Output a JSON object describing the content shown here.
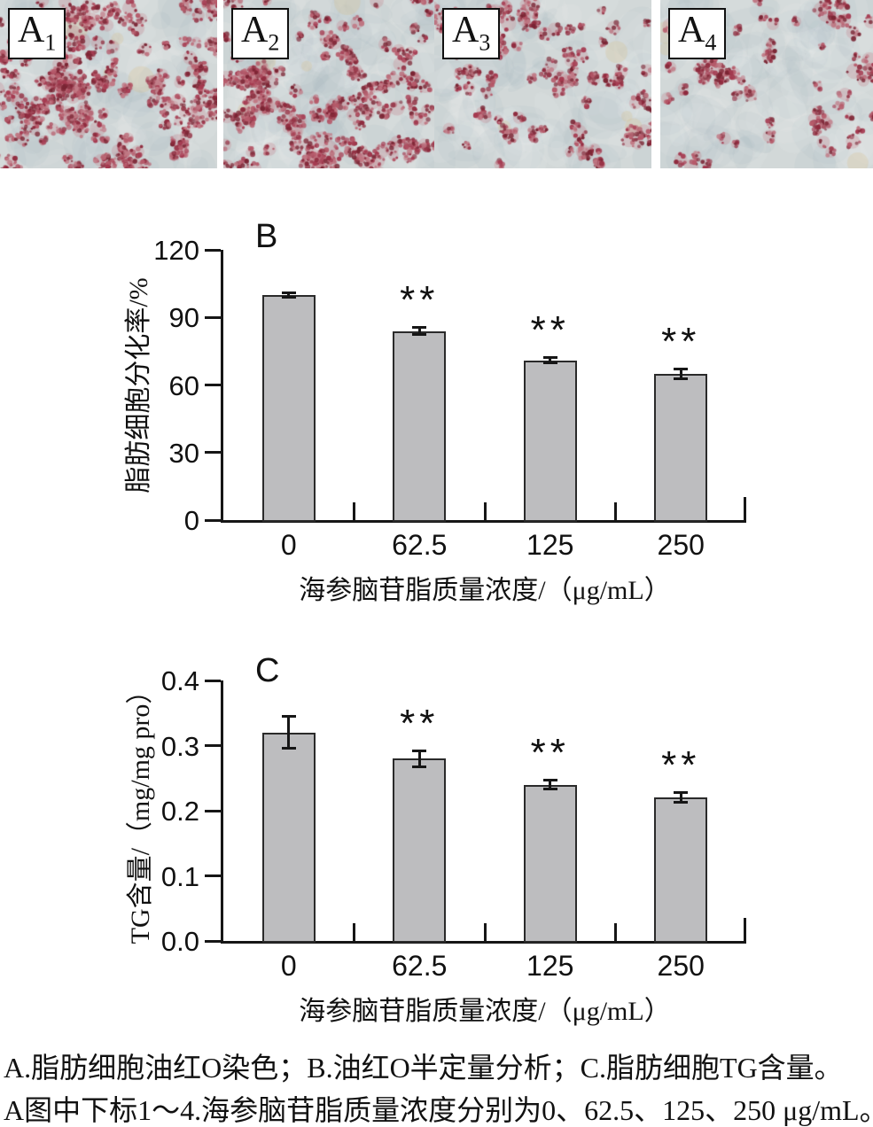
{
  "micrographs": {
    "bg_color": "#d2d8d8",
    "cell_colors": [
      "#8f2b3e",
      "#a53a50",
      "#b65a6a",
      "#7a2433",
      "#c07884"
    ],
    "halo_color": "rgba(198,132,144,0.30)",
    "tan_color": "rgba(214,196,150,0.30)",
    "panels": [
      {
        "label_base": "A",
        "label_sub": "1",
        "clusters": 40,
        "singles": 72
      },
      {
        "label_base": "A",
        "label_sub": "2",
        "clusters": 34,
        "singles": 62
      },
      {
        "label_base": "A",
        "label_sub": "3",
        "clusters": 20,
        "singles": 46
      },
      {
        "label_base": "A",
        "label_sub": "4",
        "clusters": 12,
        "singles": 34
      }
    ]
  },
  "chart_data": [
    {
      "type": "bar",
      "panel_letter": "B",
      "categories": [
        "0",
        "62.5",
        "125",
        "250"
      ],
      "values": [
        100,
        84,
        71,
        65
      ],
      "errors": [
        1.2,
        1.8,
        1.2,
        2.4
      ],
      "significance": [
        "",
        "**",
        "**",
        "**"
      ],
      "title": "",
      "xlabel": "海参脑苷脂质量浓度/（μg/mL）",
      "ylabel": "脂肪细胞分化率/%",
      "ylim": [
        0,
        120
      ],
      "yticks": [
        0,
        30,
        60,
        90,
        120
      ],
      "ytick_labels": [
        "0",
        "30",
        "60",
        "90",
        "120"
      ],
      "grid": false,
      "legend": "none",
      "bar_color": "#bdbdbf",
      "bar_border": "#2a2a2a"
    },
    {
      "type": "bar",
      "panel_letter": "C",
      "categories": [
        "0",
        "62.5",
        "125",
        "250"
      ],
      "values": [
        0.32,
        0.28,
        0.24,
        0.22
      ],
      "errors": [
        0.025,
        0.013,
        0.008,
        0.008
      ],
      "significance": [
        "",
        "**",
        "**",
        "**"
      ],
      "title": "",
      "xlabel": "海参脑苷脂质量浓度/（μg/mL）",
      "ylabel": "TG含量/（mg/mg pro）",
      "ylim": [
        0,
        0.4
      ],
      "yticks": [
        0,
        0.1,
        0.2,
        0.3,
        0.4
      ],
      "ytick_labels": [
        "0.0",
        "0.1",
        "0.2",
        "0.3",
        "0.4"
      ],
      "grid": false,
      "legend": "none",
      "bar_color": "#bdbdbf",
      "bar_border": "#2a2a2a"
    }
  ],
  "caption": {
    "line1": "A.脂肪细胞油红O染色；B.油红O半定量分析；C.脂肪细胞TG含量。",
    "line2": "A图中下标1～4.海参脑苷脂质量浓度分别为0、62.5、125、250 μg/mL。"
  }
}
